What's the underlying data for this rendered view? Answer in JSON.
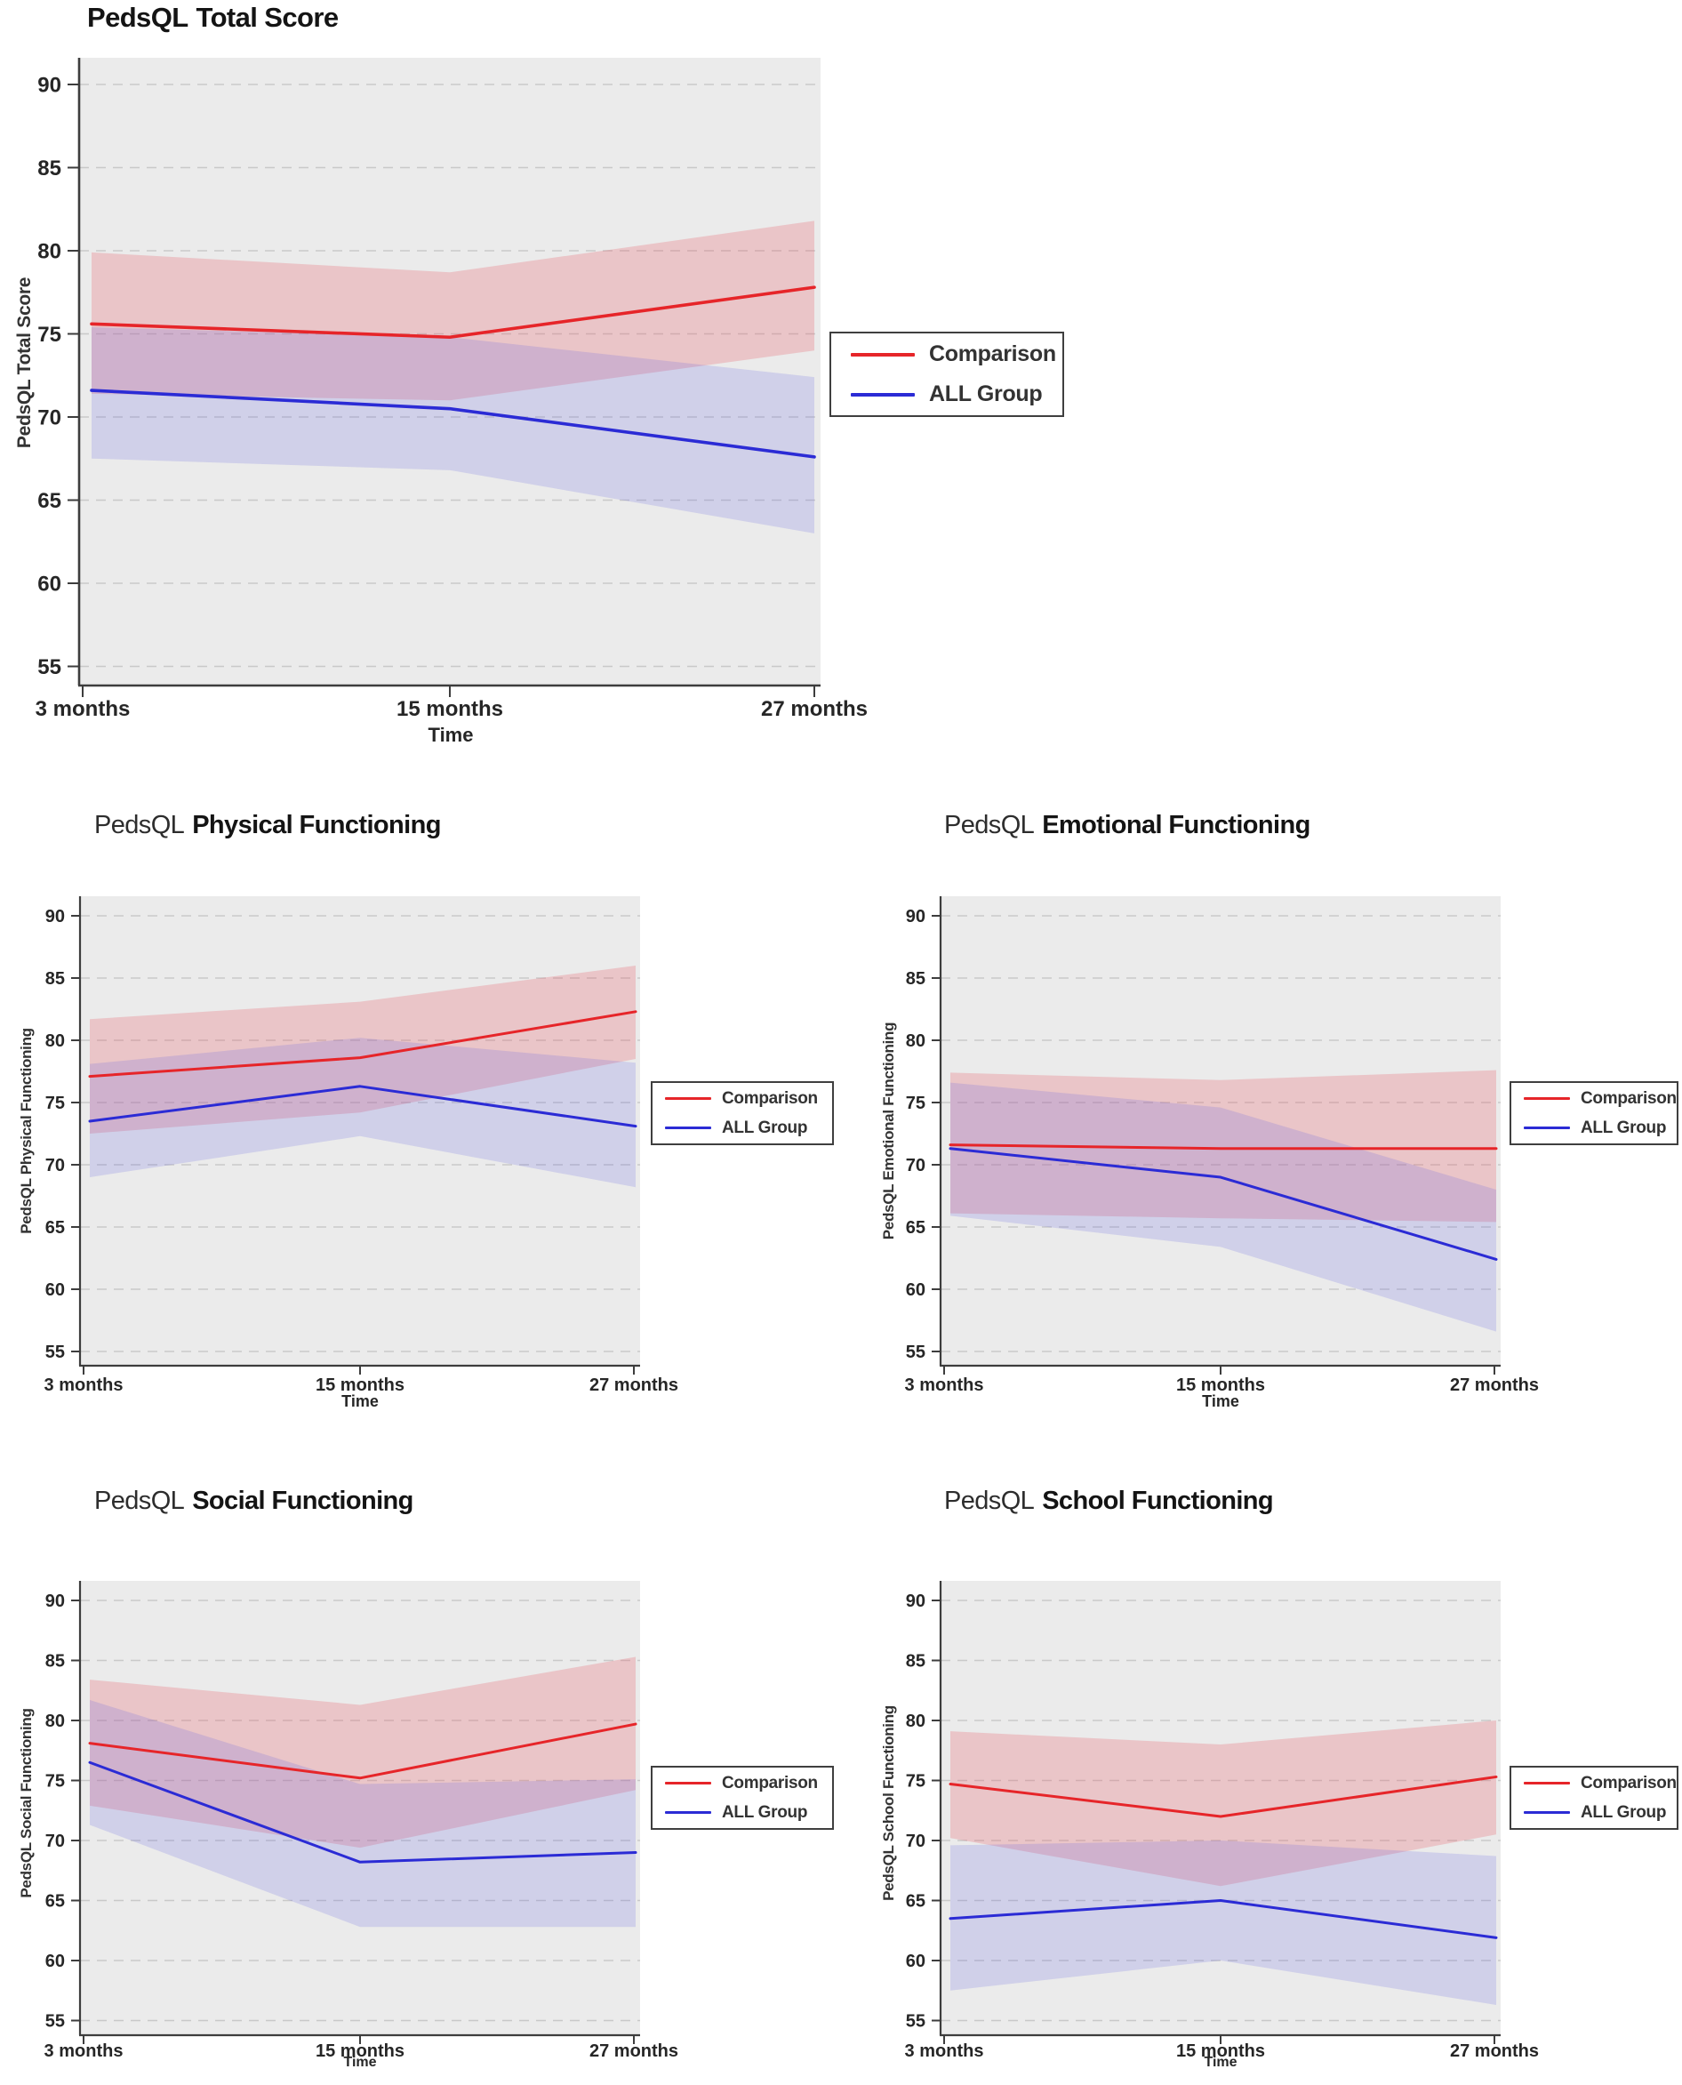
{
  "page": {
    "background": "#ffffff"
  },
  "colors": {
    "comparison": "#e62529",
    "all_group": "#2b2bd5",
    "comparison_band": "rgba(230,90,100,0.26)",
    "all_group_band": "rgba(100,100,225,0.20)",
    "plot_bg": "#ebebeb",
    "gridline": "#c9c9c9",
    "axis": "#3d3d3d",
    "text": "#262626"
  },
  "chart_data": [
    {
      "type": "line",
      "title": "PedsQL Total Score",
      "title_prefix": "PedsQL",
      "title_main": "Total Score",
      "ylabel": "PedsQL Total Score",
      "xlabel": "Time",
      "categories": [
        "3 months",
        "15 months",
        "27 months"
      ],
      "y_ticks": [
        90,
        85,
        80,
        75,
        70,
        65,
        60,
        55
      ],
      "ylim": [
        55,
        90
      ],
      "grid": "dashed-horizontal",
      "legend_position": "right",
      "legend": [
        "Comparison",
        "ALL Group"
      ],
      "series": [
        {
          "name": "Comparison",
          "values": [
            75.6,
            74.8,
            77.8
          ],
          "ci_upper": [
            79.9,
            78.7,
            81.8
          ],
          "ci_lower": [
            71.4,
            71.0,
            74.0
          ]
        },
        {
          "name": "ALL Group",
          "values": [
            71.6,
            70.5,
            67.6
          ],
          "ci_upper": [
            75.4,
            74.8,
            72.4
          ],
          "ci_lower": [
            67.5,
            66.8,
            63.0
          ]
        }
      ]
    },
    {
      "type": "line",
      "title": "PedsQL Physical Functioning",
      "title_prefix": "PedsQL",
      "title_main": "Physical Functioning",
      "ylabel": "PedsQL Physical Functioning",
      "xlabel": "Time",
      "categories": [
        "3 months",
        "15 months",
        "27 months"
      ],
      "y_ticks": [
        90,
        85,
        80,
        75,
        70,
        65,
        60,
        55
      ],
      "ylim": [
        55,
        90
      ],
      "grid": "dashed-horizontal",
      "legend_position": "right",
      "legend": [
        "Comparison",
        "ALL Group"
      ],
      "series": [
        {
          "name": "Comparison",
          "values": [
            77.1,
            78.6,
            82.3
          ],
          "ci_upper": [
            81.7,
            83.1,
            86.0
          ],
          "ci_lower": [
            72.5,
            74.2,
            78.5
          ]
        },
        {
          "name": "ALL Group",
          "values": [
            73.5,
            76.3,
            73.1
          ],
          "ci_upper": [
            78.1,
            80.2,
            78.2
          ],
          "ci_lower": [
            69.0,
            72.3,
            68.2
          ]
        }
      ]
    },
    {
      "type": "line",
      "title": "PedsQL Emotional Functioning",
      "title_prefix": "PedsQL",
      "title_main": "Emotional Functioning",
      "ylabel": "PedsQL Emotional Functioning",
      "xlabel": "Time",
      "categories": [
        "3 months",
        "15 months",
        "27 months"
      ],
      "y_ticks": [
        90,
        85,
        80,
        75,
        70,
        65,
        60,
        55
      ],
      "ylim": [
        55,
        90
      ],
      "grid": "dashed-horizontal",
      "legend_position": "right",
      "legend": [
        "Comparison",
        "ALL Group"
      ],
      "series": [
        {
          "name": "Comparison",
          "values": [
            71.6,
            71.3,
            71.3
          ],
          "ci_upper": [
            77.4,
            76.8,
            77.6
          ],
          "ci_lower": [
            66.1,
            65.7,
            65.4
          ]
        },
        {
          "name": "ALL Group",
          "values": [
            71.3,
            69.0,
            62.4
          ],
          "ci_upper": [
            76.6,
            74.6,
            68.0
          ],
          "ci_lower": [
            65.9,
            63.4,
            56.6
          ]
        }
      ]
    },
    {
      "type": "line",
      "title": "PedsQL Social Functioning",
      "title_prefix": "PedsQL",
      "title_main": "Social Functioning",
      "ylabel": "PedsQL Social Functioning",
      "xlabel": "Time",
      "categories": [
        "3 months",
        "15 months",
        "27 months"
      ],
      "y_ticks": [
        90,
        85,
        80,
        75,
        70,
        65,
        60,
        55
      ],
      "ylim": [
        55,
        90
      ],
      "grid": "dashed-horizontal",
      "legend_position": "right",
      "legend": [
        "Comparison",
        "ALL Group"
      ],
      "series": [
        {
          "name": "Comparison",
          "values": [
            78.1,
            75.2,
            79.7
          ],
          "ci_upper": [
            83.4,
            81.3,
            85.3
          ],
          "ci_lower": [
            72.9,
            69.4,
            74.2
          ]
        },
        {
          "name": "ALL Group",
          "values": [
            76.5,
            68.2,
            69.0
          ],
          "ci_upper": [
            81.7,
            74.7,
            75.1
          ],
          "ci_lower": [
            71.3,
            62.8,
            62.8
          ]
        }
      ]
    },
    {
      "type": "line",
      "title": "PedsQL School Functioning",
      "title_prefix": "PedsQL",
      "title_main": "School Functioning",
      "ylabel": "PedsQL School Functioning",
      "xlabel": "Time",
      "categories": [
        "3 months",
        "15 months",
        "27 months"
      ],
      "y_ticks": [
        90,
        85,
        80,
        75,
        70,
        65,
        60,
        55
      ],
      "ylim": [
        55,
        90
      ],
      "grid": "dashed-horizontal",
      "legend_position": "right",
      "legend": [
        "Comparison",
        "ALL Group"
      ],
      "series": [
        {
          "name": "Comparison",
          "values": [
            74.7,
            72.0,
            75.3
          ],
          "ci_upper": [
            79.1,
            78.0,
            80.0
          ],
          "ci_lower": [
            70.2,
            66.2,
            70.5
          ]
        },
        {
          "name": "ALL Group",
          "values": [
            63.5,
            65.0,
            61.9
          ],
          "ci_upper": [
            69.6,
            70.0,
            68.7
          ],
          "ci_lower": [
            57.5,
            60.0,
            56.3
          ]
        }
      ]
    }
  ]
}
